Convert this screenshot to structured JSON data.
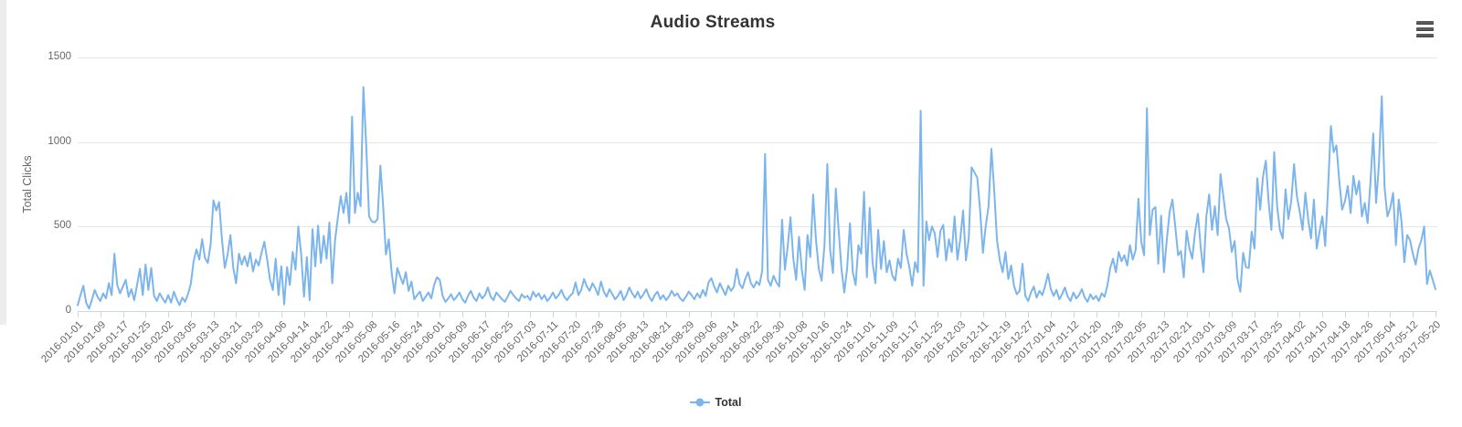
{
  "header": {
    "title": "Audio Streams"
  },
  "toolbar": {
    "context_menu_icon": "hamburger-icon"
  },
  "legend": {
    "position": "bottom",
    "items": [
      {
        "label": "Total",
        "color": "#7cb5ec"
      }
    ]
  },
  "colors": {
    "line": "#7cb5ec",
    "grid": "#e6e6e6",
    "axis": "#ccd6eb",
    "tick_text": "#666666",
    "title_text": "#333333",
    "menu_icon": "#5a5a5a"
  },
  "chart_data": {
    "type": "line",
    "title": "Audio Streams",
    "xlabel": "",
    "ylabel": "Total Clicks",
    "ylim": [
      0,
      1500
    ],
    "yticks": [
      0,
      500,
      1000,
      1500
    ],
    "grid": true,
    "x_tick_interval": 8,
    "x_labels": [
      "2016-01-01",
      "2016-01-09",
      "2016-01-17",
      "2016-01-25",
      "2016-02-02",
      "2016-03-05",
      "2016-03-13",
      "2016-03-21",
      "2016-03-29",
      "2016-04-06",
      "2016-04-14",
      "2016-04-22",
      "2016-04-30",
      "2016-05-08",
      "2016-05-16",
      "2016-05-24",
      "2016-06-01",
      "2016-06-09",
      "2016-06-17",
      "2016-06-25",
      "2016-07-03",
      "2016-07-11",
      "2016-07-20",
      "2016-07-28",
      "2016-08-05",
      "2016-08-13",
      "2016-08-21",
      "2016-08-29",
      "2016-09-06",
      "2016-09-14",
      "2016-09-22",
      "2016-09-30",
      "2016-10-08",
      "2016-10-16",
      "2016-10-24",
      "2016-11-01",
      "2016-11-09",
      "2016-11-17",
      "2016-11-25",
      "2016-12-03",
      "2016-12-11",
      "2016-12-19",
      "2016-12-27",
      "2017-01-04",
      "2017-01-12",
      "2017-01-20",
      "2017-01-28",
      "2017-02-05",
      "2017-02-13",
      "2017-02-21",
      "2017-03-01",
      "2017-03-09",
      "2017-03-17",
      "2017-03-25",
      "2017-04-02",
      "2017-04-10",
      "2017-04-18",
      "2017-04-26",
      "2017-05-04",
      "2017-05-12",
      "2017-05-20"
    ],
    "series": [
      {
        "name": "Total",
        "color": "#7cb5ec",
        "values": [
          35,
          95,
          150,
          50,
          15,
          65,
          125,
          85,
          60,
          105,
          75,
          165,
          95,
          340,
          155,
          105,
          145,
          185,
          85,
          130,
          65,
          155,
          250,
          95,
          275,
          125,
          255,
          90,
          60,
          105,
          75,
          50,
          95,
          50,
          115,
          70,
          35,
          80,
          55,
          100,
          160,
          295,
          365,
          305,
          425,
          315,
          285,
          395,
          655,
          595,
          645,
          425,
          255,
          335,
          450,
          255,
          165,
          340,
          275,
          325,
          265,
          345,
          235,
          305,
          270,
          345,
          410,
          305,
          185,
          125,
          310,
          95,
          265,
          40,
          260,
          155,
          350,
          245,
          500,
          335,
          85,
          320,
          65,
          485,
          265,
          505,
          285,
          445,
          310,
          525,
          165,
          420,
          555,
          680,
          580,
          700,
          520,
          1150,
          580,
          700,
          620,
          1325,
          980,
          560,
          530,
          525,
          545,
          860,
          620,
          335,
          425,
          230,
          105,
          255,
          205,
          160,
          230,
          120,
          175,
          70,
          95,
          115,
          60,
          85,
          110,
          75,
          155,
          200,
          185,
          90,
          55,
          75,
          100,
          65,
          85,
          110,
          70,
          50,
          90,
          120,
          80,
          60,
          105,
          75,
          95,
          140,
          85,
          65,
          110,
          90,
          70,
          55,
          85,
          120,
          95,
          75,
          60,
          100,
          80,
          90,
          65,
          115,
          85,
          105,
          70,
          95,
          60,
          80,
          110,
          75,
          95,
          125,
          85,
          65,
          90,
          105,
          170,
          95,
          125,
          190,
          145,
          120,
          165,
          135,
          95,
          175,
          115,
          85,
          130,
          100,
          70,
          90,
          120,
          65,
          95,
          140,
          105,
          80,
          115,
          75,
          100,
          130,
          85,
          60,
          95,
          115,
          70,
          95,
          65,
          85,
          120,
          90,
          105,
          75,
          60,
          85,
          115,
          95,
          70,
          105,
          80,
          125,
          90,
          170,
          195,
          145,
          110,
          165,
          130,
          95,
          150,
          120,
          145,
          250,
          160,
          135,
          190,
          230,
          165,
          140,
          175,
          155,
          240,
          930,
          185,
          150,
          210,
          170,
          145,
          540,
          245,
          385,
          555,
          310,
          185,
          440,
          245,
          125,
          450,
          320,
          690,
          420,
          250,
          180,
          390,
          870,
          360,
          225,
          725,
          480,
          250,
          110,
          255,
          520,
          230,
          155,
          390,
          340,
          705,
          200,
          610,
          290,
          165,
          480,
          250,
          415,
          230,
          300,
          210,
          180,
          310,
          255,
          480,
          340,
          260,
          150,
          290,
          230,
          1185,
          150,
          530,
          420,
          500,
          460,
          320,
          475,
          510,
          300,
          425,
          350,
          560,
          305,
          425,
          595,
          300,
          430,
          850,
          820,
          790,
          600,
          345,
          505,
          620,
          960,
          720,
          420,
          300,
          230,
          350,
          190,
          270,
          150,
          100,
          120,
          280,
          90,
          60,
          110,
          145,
          80,
          120,
          95,
          150,
          220,
          130,
          90,
          125,
          70,
          100,
          140,
          85,
          60,
          110,
          75,
          95,
          130,
          80,
          55,
          100,
          70,
          90,
          60,
          105,
          85,
          150,
          255,
          310,
          230,
          350,
          295,
          330,
          270,
          390,
          305,
          360,
          665,
          410,
          330,
          1200,
          450,
          600,
          615,
          280,
          565,
          230,
          420,
          585,
          660,
          500,
          330,
          355,
          200,
          475,
          370,
          310,
          470,
          575,
          380,
          230,
          560,
          690,
          480,
          620,
          450,
          810,
          680,
          545,
          490,
          350,
          415,
          190,
          115,
          345,
          260,
          255,
          470,
          370,
          785,
          600,
          795,
          890,
          650,
          480,
          940,
          625,
          480,
          430,
          720,
          545,
          650,
          870,
          680,
          590,
          480,
          700,
          540,
          430,
          660,
          370,
          470,
          560,
          385,
          725,
          1095,
          940,
          980,
          770,
          600,
          650,
          740,
          580,
          800,
          690,
          770,
          560,
          640,
          520,
          760,
          1050,
          640,
          870,
          1270,
          730,
          560,
          610,
          700,
          390,
          660,
          530,
          290,
          450,
          420,
          340,
          275,
          370,
          420,
          500,
          160,
          240,
          185,
          130
        ]
      }
    ]
  }
}
